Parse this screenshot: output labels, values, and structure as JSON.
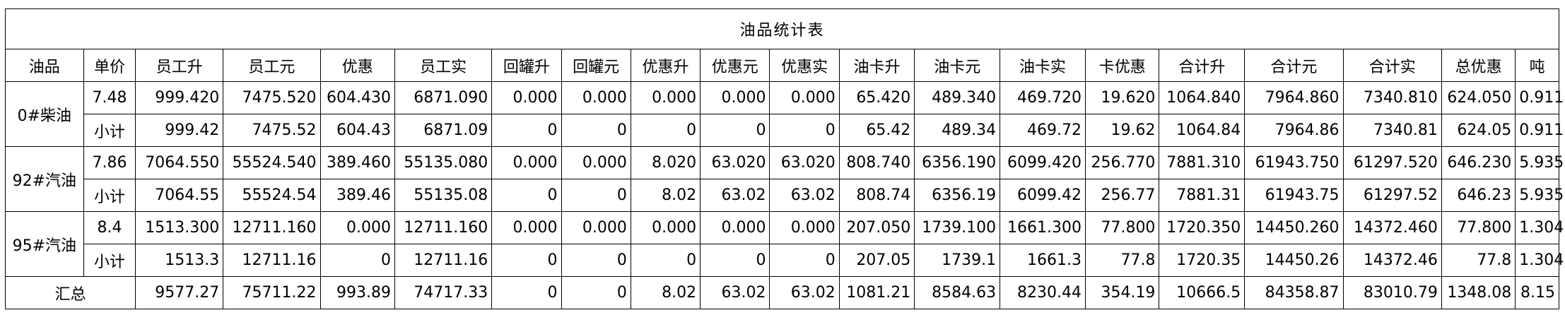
{
  "report": {
    "title": "油品统计表",
    "columns": [
      "油品",
      "单价",
      "员工升",
      "员工元",
      "优惠",
      "员工实",
      "回罐升",
      "回罐元",
      "优惠升",
      "优惠元",
      "优惠实",
      "油卡升",
      "油卡元",
      "油卡实",
      "卡优惠",
      "合计升",
      "合计元",
      "合计实",
      "总优惠",
      "吨"
    ],
    "groups": [
      {
        "product": "0#柴油",
        "detail": [
          "7.48",
          "999.420",
          "7475.520",
          "604.430",
          "6871.090",
          "0.000",
          "0.000",
          "0.000",
          "0.000",
          "0.000",
          "65.420",
          "489.340",
          "469.720",
          "19.620",
          "1064.840",
          "7964.860",
          "7340.810",
          "624.050",
          "0.911"
        ],
        "subtotal_label": "小计",
        "subtotal": [
          "999.42",
          "7475.52",
          "604.43",
          "6871.09",
          "0",
          "0",
          "0",
          "0",
          "0",
          "65.42",
          "489.34",
          "469.72",
          "19.62",
          "1064.84",
          "7964.86",
          "7340.81",
          "624.05",
          "0.911"
        ]
      },
      {
        "product": "92#汽油",
        "detail": [
          "7.86",
          "7064.550",
          "55524.540",
          "389.460",
          "55135.080",
          "0.000",
          "0.000",
          "8.020",
          "63.020",
          "63.020",
          "808.740",
          "6356.190",
          "6099.420",
          "256.770",
          "7881.310",
          "61943.750",
          "61297.520",
          "646.230",
          "5.935"
        ],
        "subtotal_label": "小计",
        "subtotal": [
          "7064.55",
          "55524.54",
          "389.46",
          "55135.08",
          "0",
          "0",
          "8.02",
          "63.02",
          "63.02",
          "808.74",
          "6356.19",
          "6099.42",
          "256.77",
          "7881.31",
          "61943.75",
          "61297.52",
          "646.23",
          "5.935"
        ]
      },
      {
        "product": "95#汽油",
        "detail": [
          "8.4",
          "1513.300",
          "12711.160",
          "0.000",
          "12711.160",
          "0.000",
          "0.000",
          "0.000",
          "0.000",
          "0.000",
          "207.050",
          "1739.100",
          "1661.300",
          "77.800",
          "1720.350",
          "14450.260",
          "14372.460",
          "77.800",
          "1.304"
        ],
        "subtotal_label": "小计",
        "subtotal": [
          "1513.3",
          "12711.16",
          "0",
          "12711.16",
          "0",
          "0",
          "0",
          "0",
          "0",
          "207.05",
          "1739.1",
          "1661.3",
          "77.8",
          "1720.35",
          "14450.26",
          "14372.46",
          "77.8",
          "1.304"
        ]
      }
    ],
    "grand_total": {
      "label": "汇总",
      "values": [
        "9577.27",
        "75711.22",
        "993.89",
        "74717.33",
        "0",
        "0",
        "8.02",
        "63.02",
        "63.02",
        "1081.21",
        "8584.63",
        "8230.44",
        "354.19",
        "10666.5",
        "84358.87",
        "83010.79",
        "1348.08",
        "8.15"
      ]
    }
  }
}
